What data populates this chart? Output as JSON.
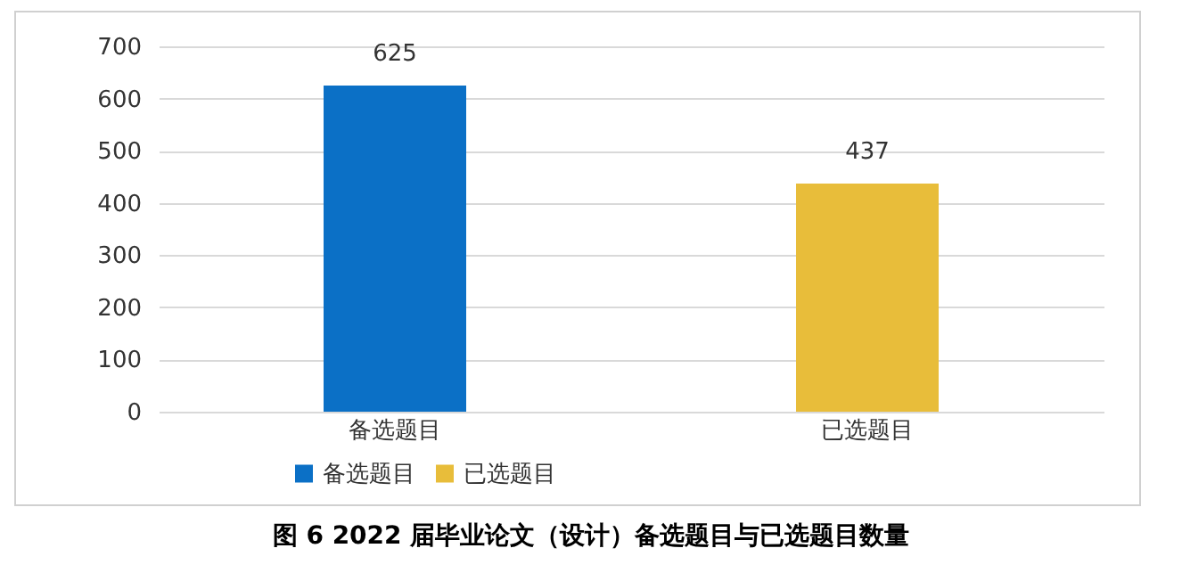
{
  "chart_data": {
    "type": "bar",
    "categories": [
      "备选题目",
      "已选题目"
    ],
    "series": [
      {
        "name": "备选题目",
        "color": "#0b70c6",
        "values": [
          625,
          null
        ]
      },
      {
        "name": "已选题目",
        "color": "#e8bd3a",
        "values": [
          null,
          437
        ]
      }
    ],
    "ylim": [
      0,
      700
    ],
    "yticks": [
      0,
      100,
      200,
      300,
      400,
      500,
      600,
      700
    ],
    "grid": "y",
    "legend": "bottom",
    "data_labels": true,
    "annotations": [
      "图 6   2022 届毕业论文（设计）备选题目与已选题目数量"
    ]
  }
}
